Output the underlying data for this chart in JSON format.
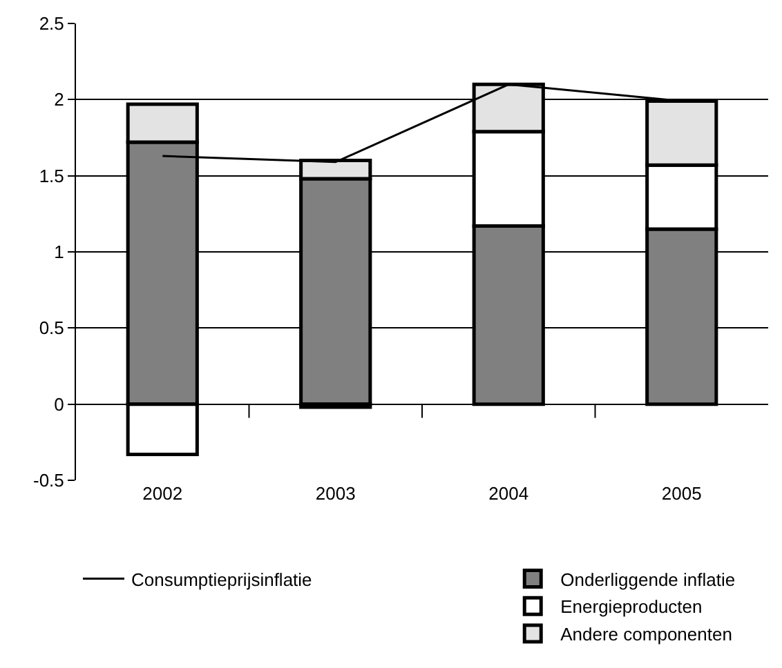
{
  "chart_data": {
    "type": "bar",
    "stacked": true,
    "categories": [
      "2002",
      "2003",
      "2004",
      "2005"
    ],
    "series": [
      {
        "name": "Onderliggende inflatie",
        "color": "#808080",
        "values": [
          1.72,
          1.48,
          1.17,
          1.15
        ]
      },
      {
        "name": "Energieproducten",
        "color": "#ffffff",
        "values": [
          -0.33,
          -0.02,
          0.62,
          0.42
        ]
      },
      {
        "name": "Andere componenten",
        "color": "#e3e3e3",
        "values": [
          0.25,
          0.12,
          0.31,
          0.42
        ]
      },
      {
        "name": "Consumptieprijsinflatie",
        "type": "line",
        "color": "#000000",
        "values": [
          1.63,
          1.59,
          2.1,
          1.99
        ]
      }
    ],
    "ylim": [
      -0.5,
      2.5
    ],
    "yticks": [
      -0.5,
      0,
      0.5,
      1,
      1.5,
      2,
      2.5
    ],
    "grid": "y",
    "legend": "bottom",
    "marker": "none",
    "line_style": "solid"
  }
}
